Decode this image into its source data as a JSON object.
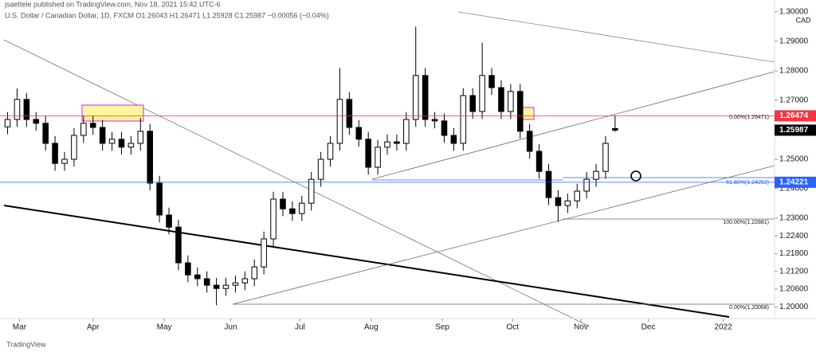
{
  "header": {
    "published": "jsaettele published on TradingView.com, Nov 18, 2021 15:42 UTC-6",
    "symbol_info": "U.S. Dollar / Canadian Dollar, 1D, FXCM  O1.26043  H1.26471  L1.25928  C1.25987  −0.00056 (−0.04%)"
  },
  "footer": {
    "brand": "TradingView"
  },
  "chart_data": {
    "type": "candlestick",
    "currency": "CAD",
    "open": [
      1.261,
      1.2635,
      1.2703,
      1.2635,
      1.2622,
      1.2554,
      1.2486,
      1.25,
      1.2581,
      1.2622,
      1.2608,
      1.2554,
      1.2568,
      1.2541,
      1.2554,
      1.2595,
      1.2419,
      1.2311,
      1.227,
      1.2149,
      1.2108,
      1.2095,
      1.2073,
      1.2062,
      1.2073,
      1.2081,
      1.2095,
      1.2135,
      1.223,
      1.2365,
      1.2332,
      1.2316,
      1.2351,
      1.2432,
      1.25,
      1.2554,
      1.2703,
      1.2608,
      1.2568,
      1.2473,
      1.2541,
      1.2559,
      1.2554,
      1.2635,
      1.2784,
      1.2635,
      1.263,
      1.2581,
      1.2554,
      1.2716,
      1.2662,
      1.2784,
      1.2743,
      1.2662,
      1.273,
      1.2595,
      1.2527,
      1.2459,
      1.237,
      1.2343,
      1.2359,
      1.2392,
      1.2432,
      1.2459,
      1.26043
    ],
    "high": [
      1.266,
      1.274,
      1.2725,
      1.266,
      1.2647,
      1.2579,
      1.2525,
      1.2606,
      1.2647,
      1.2647,
      1.2633,
      1.2593,
      1.2593,
      1.2579,
      1.264,
      1.262,
      1.2444,
      1.2336,
      1.2295,
      1.2174,
      1.2133,
      1.212,
      1.2098,
      1.2098,
      1.2106,
      1.212,
      1.216,
      1.2255,
      1.239,
      1.239,
      1.2357,
      1.2376,
      1.2457,
      1.2525,
      1.2579,
      1.281,
      1.2728,
      1.2633,
      1.2593,
      1.2566,
      1.2584,
      1.2584,
      1.266,
      1.295,
      1.2809,
      1.266,
      1.2655,
      1.2606,
      1.2741,
      1.2741,
      1.2896,
      1.2809,
      1.2768,
      1.2755,
      1.2755,
      1.262,
      1.2552,
      1.2484,
      1.2395,
      1.2384,
      1.2417,
      1.2457,
      1.2484,
      1.2579,
      1.26471
    ],
    "low": [
      1.2585,
      1.261,
      1.261,
      1.2597,
      1.2529,
      1.2461,
      1.2461,
      1.2475,
      1.2556,
      1.2583,
      1.2529,
      1.2529,
      1.2516,
      1.2516,
      1.2529,
      1.2394,
      1.2286,
      1.2245,
      1.2124,
      1.2083,
      1.207,
      1.2048,
      1.2005,
      1.2037,
      1.2048,
      1.2056,
      1.207,
      1.211,
      1.2205,
      1.2307,
      1.2291,
      1.2291,
      1.2326,
      1.2407,
      1.2475,
      1.2529,
      1.2583,
      1.2543,
      1.2448,
      1.2448,
      1.2516,
      1.2529,
      1.2529,
      1.261,
      1.261,
      1.2605,
      1.2556,
      1.2529,
      1.2529,
      1.2637,
      1.2637,
      1.2718,
      1.2637,
      1.2637,
      1.257,
      1.2502,
      1.2434,
      1.2345,
      1.2288,
      1.2318,
      1.2334,
      1.2367,
      1.2407,
      1.2434,
      1.25928
    ],
    "close": [
      1.2635,
      1.2703,
      1.2635,
      1.2622,
      1.2554,
      1.2486,
      1.25,
      1.2581,
      1.2622,
      1.2608,
      1.2554,
      1.2568,
      1.2541,
      1.2554,
      1.2595,
      1.2419,
      1.2311,
      1.227,
      1.2149,
      1.2108,
      1.2095,
      1.2073,
      1.2062,
      1.2073,
      1.2081,
      1.2095,
      1.2135,
      1.223,
      1.2365,
      1.2332,
      1.2316,
      1.2351,
      1.2432,
      1.25,
      1.2554,
      1.2703,
      1.2608,
      1.2568,
      1.2473,
      1.2541,
      1.2559,
      1.2554,
      1.2635,
      1.2784,
      1.2635,
      1.263,
      1.2581,
      1.2554,
      1.2716,
      1.2662,
      1.2784,
      1.2743,
      1.2662,
      1.273,
      1.2595,
      1.2527,
      1.2459,
      1.237,
      1.2343,
      1.2359,
      1.2392,
      1.2432,
      1.2459,
      1.2554,
      1.25987
    ],
    "up_color": "#ffffff",
    "down_color": "#000000",
    "border_color": "#000000",
    "xlim": [
      -0.8,
      80.8
    ],
    "xticks": [
      {
        "value": 1.25,
        "label": "Mar"
      },
      {
        "value": 9,
        "label": "Apr"
      },
      {
        "value": 16.5,
        "label": "May"
      },
      {
        "value": 23.5,
        "label": "Jun"
      },
      {
        "value": 30.8,
        "label": "Jul"
      },
      {
        "value": 38.3,
        "label": "Aug"
      },
      {
        "value": 45.8,
        "label": "Sep"
      },
      {
        "value": 53.2,
        "label": "Oct"
      },
      {
        "value": 60.4,
        "label": "Nov"
      },
      {
        "value": 67.5,
        "label": "Dec"
      },
      {
        "value": 75.4,
        "label": "2022"
      }
    ],
    "ylim": [
      1.196,
      1.304
    ],
    "yticks": [
      {
        "value": 1.3,
        "label": "1.30000"
      },
      {
        "value": 1.29,
        "label": "1.29000"
      },
      {
        "value": 1.28,
        "label": "1.28000"
      },
      {
        "value": 1.27,
        "label": "1.27000"
      },
      {
        "value": 1.25,
        "label": "1.25000"
      },
      {
        "value": 1.24,
        "label": "1.24000"
      },
      {
        "value": 1.23,
        "label": "1.23000"
      },
      {
        "value": 1.224,
        "label": "1.22400"
      },
      {
        "value": 1.218,
        "label": "1.21800"
      },
      {
        "value": 1.212,
        "label": "1.21200"
      },
      {
        "value": 1.206,
        "label": "1.20600"
      },
      {
        "value": 1.2,
        "label": "1.20000"
      }
    ],
    "grid": false,
    "price_lines": [
      {
        "value": 1.26474,
        "color": "#f23645",
        "line": true
      },
      {
        "value": 1.25987,
        "color": "#000000",
        "line": false
      },
      {
        "value": 1.24221,
        "color": "#2962ff",
        "line": true
      }
    ],
    "fib_labels": [
      "0.00%(1.26471)",
      "61.80%(1.24252)",
      "100.00%(1.22881)",
      "0.00%(1.20068)"
    ]
  }
}
